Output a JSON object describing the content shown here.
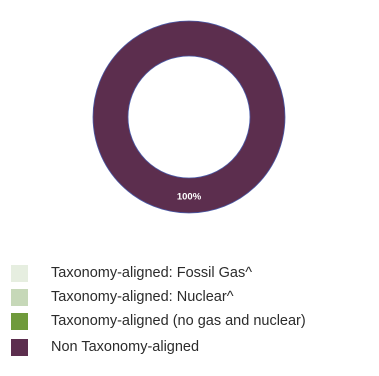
{
  "chart_data": {
    "type": "pie",
    "variant": "donut",
    "categories": [
      "Taxonomy-aligned: Fossil Gas^",
      "Taxonomy-aligned: Nuclear^",
      "Taxonomy-aligned (no gas and nuclear)",
      "Non Taxonomy-aligned"
    ],
    "values": [
      0,
      0,
      0,
      100
    ],
    "data_labels": [
      "",
      "",
      "",
      "100%"
    ],
    "colors": [
      "#e6eee0",
      "#c6d8b8",
      "#6f9a3b",
      "#5c2e4e"
    ],
    "slice_border_color": "#4a5aa8",
    "legend_placement": "bottom-left"
  }
}
